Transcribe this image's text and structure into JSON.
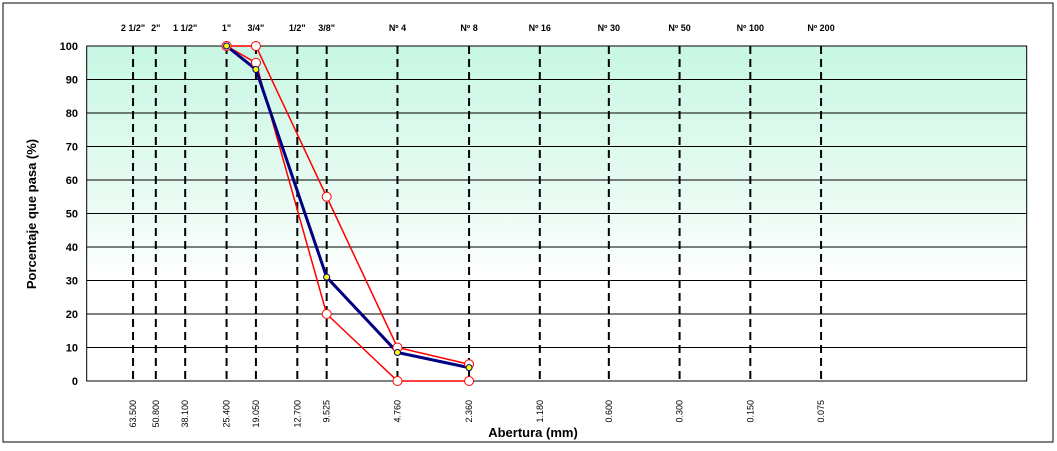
{
  "chart_data": {
    "type": "line",
    "xlabel": "Abertura (mm)",
    "ylabel": "Porcentaje que pasa (%)",
    "xscale": "log",
    "xreverse": true,
    "xlim": [
      100,
      0.01
    ],
    "ylim": [
      0,
      100
    ],
    "yticks": [
      0,
      10,
      20,
      30,
      40,
      50,
      60,
      70,
      80,
      90,
      100
    ],
    "xticks": [
      {
        "value": 63.5,
        "label": "63.500"
      },
      {
        "value": 50.8,
        "label": "50.800"
      },
      {
        "value": 38.1,
        "label": "38.100"
      },
      {
        "value": 25.4,
        "label": "25.400"
      },
      {
        "value": 19.05,
        "label": "19.050"
      },
      {
        "value": 12.7,
        "label": "12.700"
      },
      {
        "value": 9.525,
        "label": "9.525"
      },
      {
        "value": 4.76,
        "label": "4.760"
      },
      {
        "value": 2.36,
        "label": "2.360"
      },
      {
        "value": 1.18,
        "label": "1.180"
      },
      {
        "value": 0.6,
        "label": "0.600"
      },
      {
        "value": 0.3,
        "label": "0.300"
      },
      {
        "value": 0.15,
        "label": "0.150"
      },
      {
        "value": 0.075,
        "label": "0.075"
      }
    ],
    "sieves": [
      "2 1/2\"",
      "2\"",
      "1 1/2\"",
      "1\"",
      "3/4\"",
      "1/2\"",
      "3/8\"",
      "Nº 4",
      "Nº 8",
      "Nº 16",
      "Nº 30",
      "Nº 50",
      "Nº 100",
      "Nº 200"
    ],
    "x": [
      25.4,
      19.05,
      9.525,
      4.76,
      2.36
    ],
    "series": [
      {
        "color": "#ff0000",
        "marker_color": "#ffffff",
        "values": [
          100,
          100,
          55,
          10,
          5
        ]
      },
      {
        "color": "#ff0000",
        "marker_color": "#ffffff",
        "values": [
          100,
          95,
          20,
          0,
          0
        ]
      },
      {
        "color": "#000080",
        "marker_color": "#ffff00",
        "values": [
          100,
          93,
          31,
          8.5,
          4
        ]
      }
    ],
    "grid": true
  }
}
